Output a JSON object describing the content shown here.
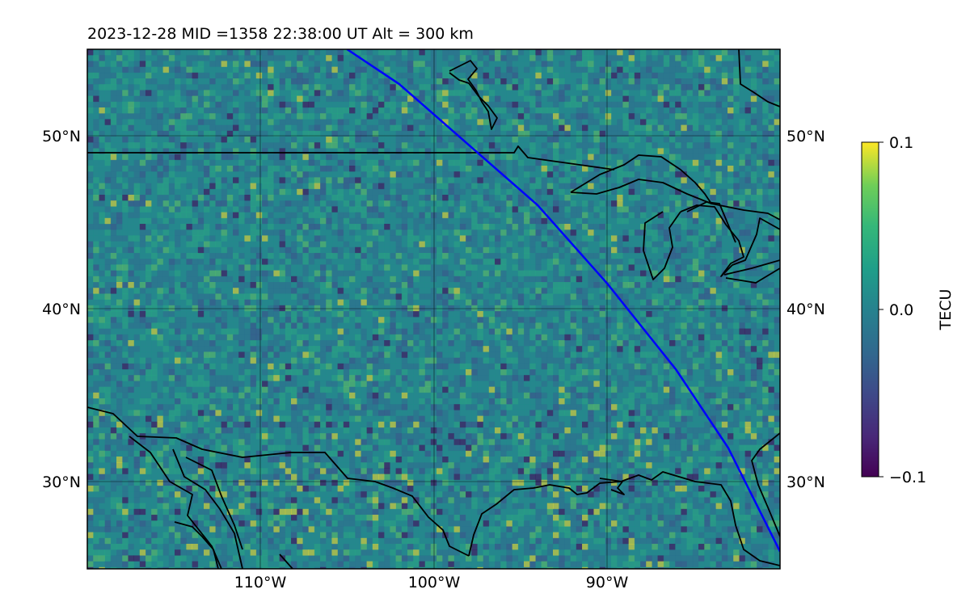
{
  "title": "2023-12-28  MID =1358    22:38:00  UT  Alt = 300 km",
  "map": {
    "lat_labels_left": [
      "50°N",
      "40°N",
      "30°N"
    ],
    "lat_labels_right": [
      "50°N",
      "40°N",
      "30°N"
    ],
    "lon_labels": [
      "110°W",
      "100°W",
      "90°W"
    ],
    "lon_range": [
      -120,
      -80
    ],
    "lat_range": [
      25,
      55
    ],
    "grid": true,
    "gridlines_lon": [
      -110,
      -100,
      -90
    ],
    "gridlines_lat": [
      30,
      40,
      50
    ],
    "satellite_track": {
      "color": "#0000ff",
      "lon": [
        -105.0,
        -102.0,
        -98.0,
        -94.0,
        -90.0,
        -86.0,
        -83.0,
        -81.5,
        -80.0
      ],
      "lat": [
        55.0,
        53.0,
        49.5,
        46.0,
        41.5,
        36.5,
        32.0,
        29.0,
        26.0
      ]
    }
  },
  "colorbar": {
    "label": "TECU",
    "ticks": [
      "0.1",
      "0.0",
      "−0.1"
    ],
    "min": -0.1,
    "max": 0.1,
    "colormap": "viridis"
  }
}
